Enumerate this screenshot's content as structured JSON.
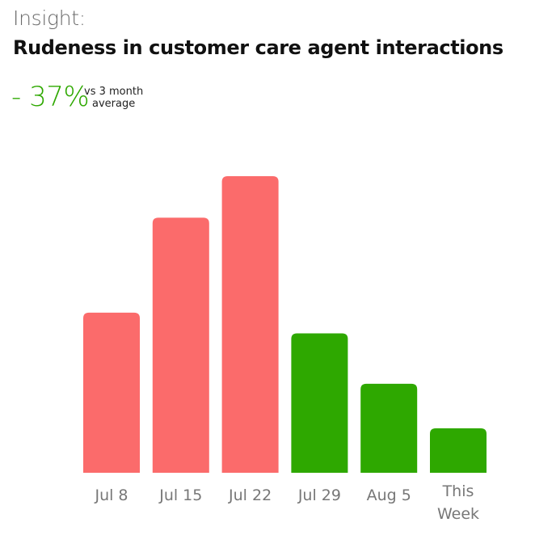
{
  "header": {
    "insight_label": "Insight:",
    "title": "Rudeness in customer care agent interactions",
    "delta_value": "- 37%",
    "delta_caption_line1": "vs 3 month",
    "delta_caption_line2": "average"
  },
  "colors": {
    "increase": "#fb6b6b",
    "decrease": "#2ea800"
  },
  "chart_data": {
    "type": "bar",
    "title": "Rudeness in customer care agent interactions",
    "categories": [
      "Jul 8",
      "Jul 15",
      "Jul 22",
      "Jul 29",
      "Aug 5",
      "This Week"
    ],
    "category_lines": [
      [
        "Jul 8"
      ],
      [
        "Jul 15"
      ],
      [
        "Jul 22"
      ],
      [
        "Jul 29"
      ],
      [
        "Aug 5"
      ],
      [
        "This",
        "Week"
      ]
    ],
    "values": [
      54,
      86,
      100,
      47,
      30,
      15
    ],
    "value_note": "relative to max bar (no y-axis printed)",
    "bar_colors": [
      "#fb6b6b",
      "#fb6b6b",
      "#fb6b6b",
      "#2ea800",
      "#2ea800",
      "#2ea800"
    ],
    "ylim": [
      0,
      100
    ],
    "grid": false,
    "legend": "none"
  }
}
